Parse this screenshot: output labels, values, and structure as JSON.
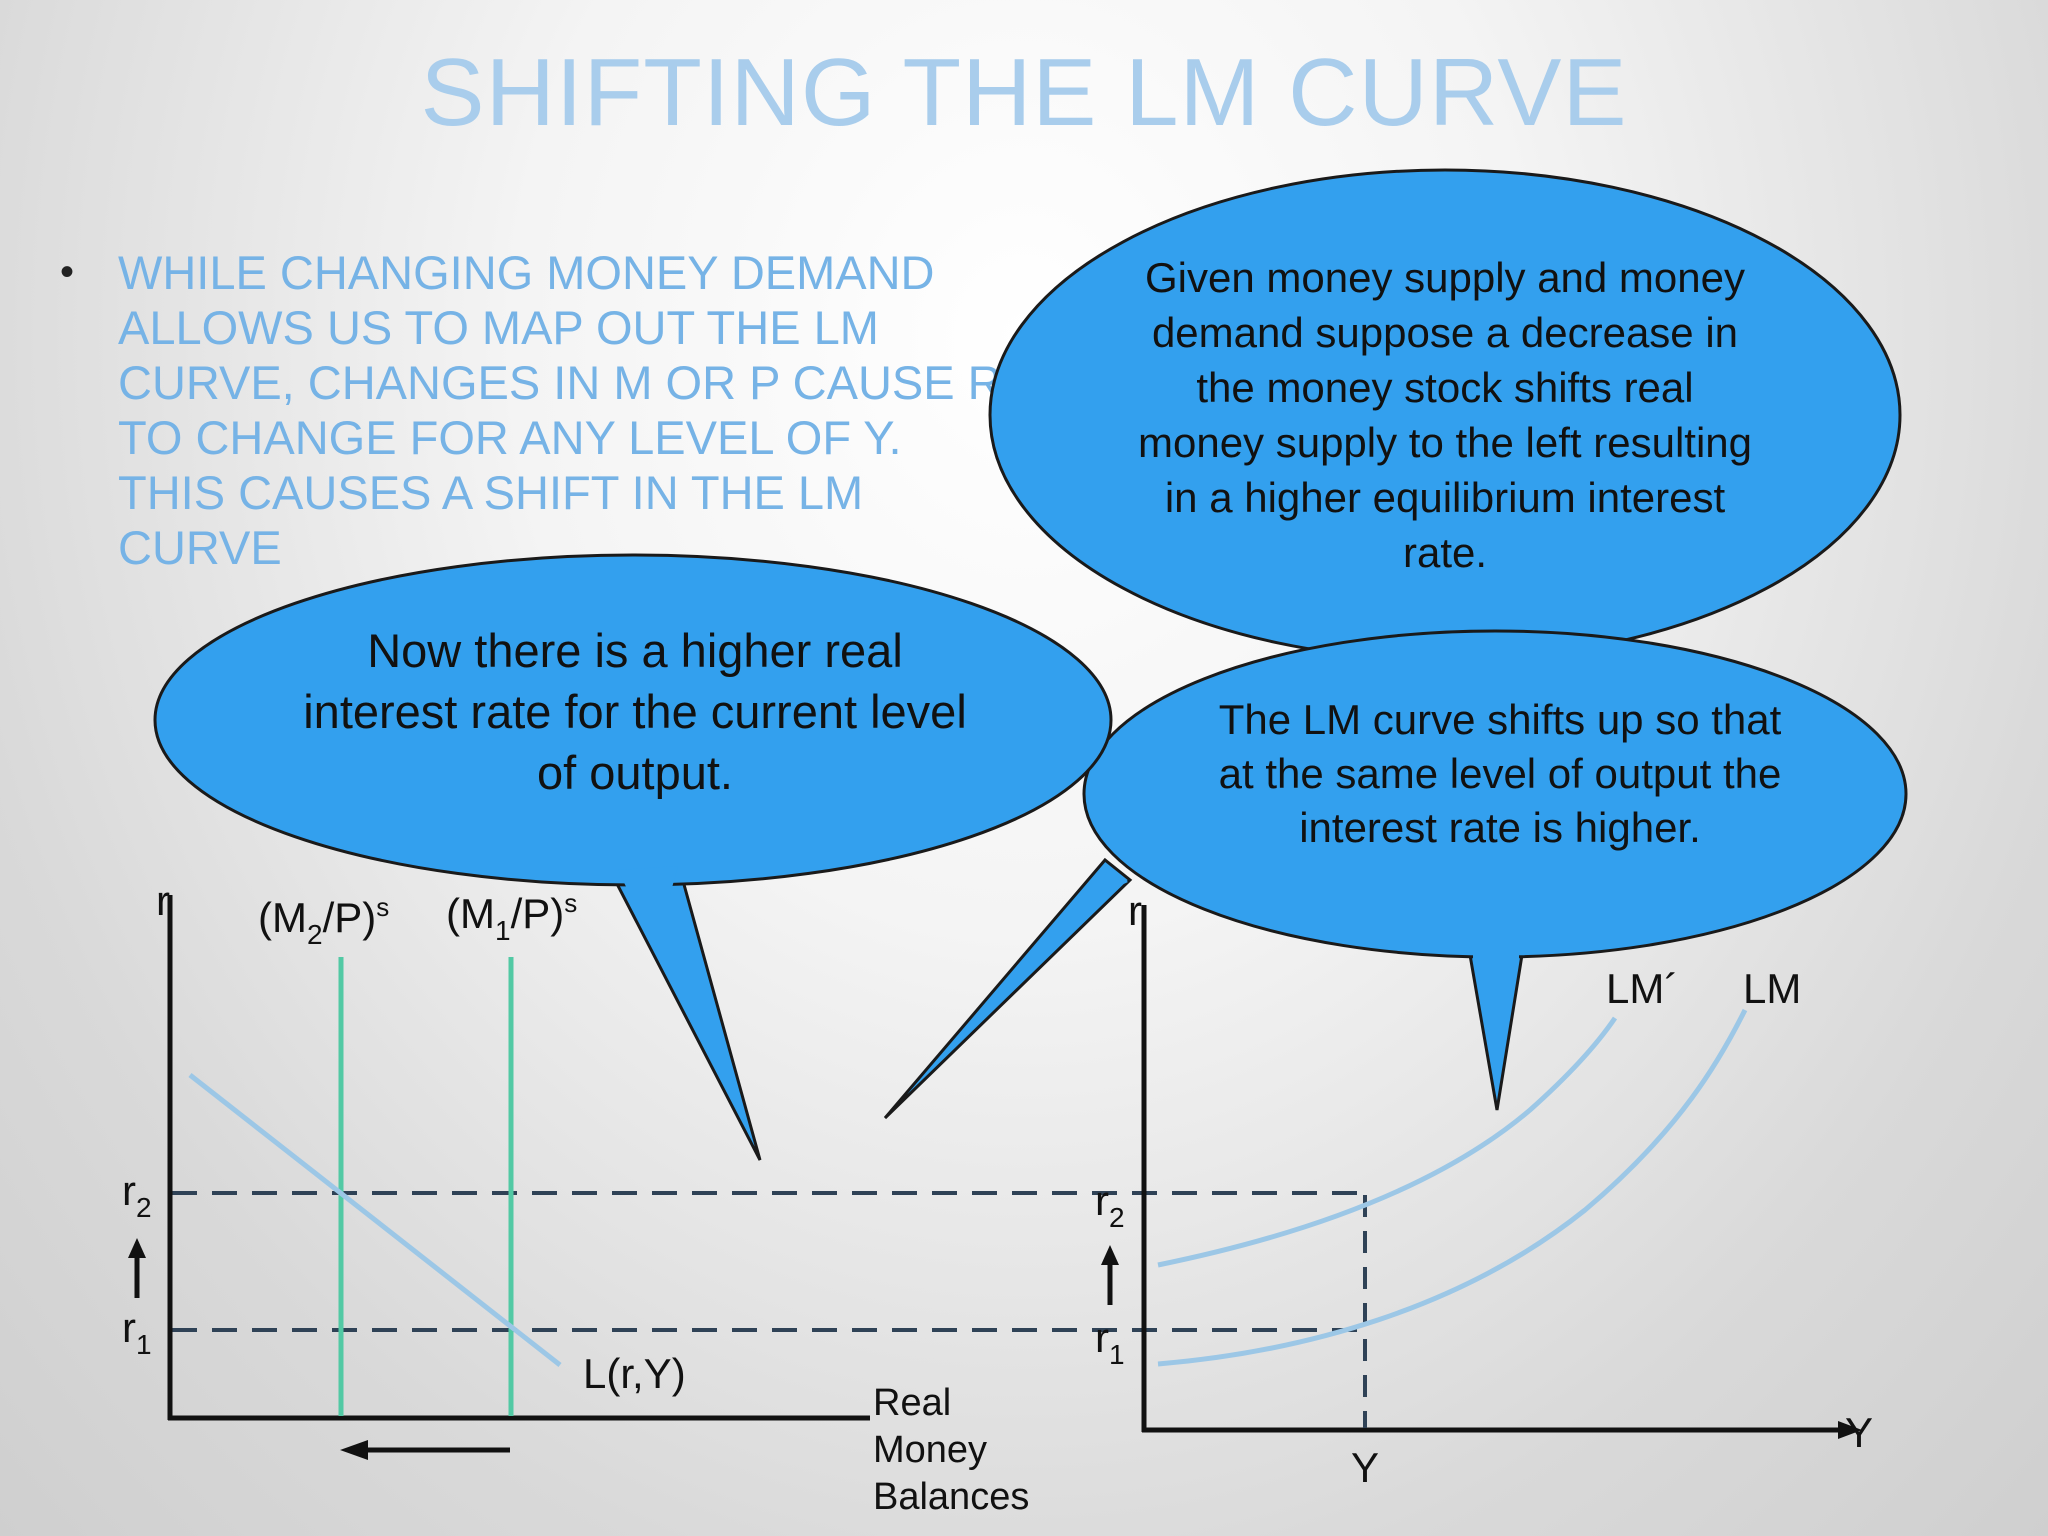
{
  "title": "SHIFTING THE LM CURVE",
  "bullet": "WHILE CHANGING MONEY DEMAND ALLOWS US TO MAP OUT THE LM CURVE, CHANGES IN M OR P CAUSE R TO CHANGE FOR ANY LEVEL OF Y.  THIS CAUSES A SHIFT IN THE LM CURVE",
  "callouts": {
    "top": "Given money supply and money demand suppose a decrease in the money stock shifts real money supply to the left resulting in a higher equilibrium interest rate.",
    "left": "Now there is a higher real interest rate for the current level of output.",
    "right": "The LM curve shifts up so that at the same level of output the interest rate is higher."
  },
  "left_graph": {
    "y_axis": "r",
    "x_axis": [
      "Real",
      "Money",
      "Balances"
    ],
    "supply_m2": {
      "base": "(M",
      "sub": "2",
      "mid": "/P)",
      "sup": "s"
    },
    "supply_m1": {
      "base": "(M",
      "sub": "1",
      "mid": "/P)",
      "sup": "s"
    },
    "demand": "L(r,Y)",
    "r2": {
      "base": "r",
      "sub": "2"
    },
    "r1": {
      "base": "r",
      "sub": "1"
    }
  },
  "right_graph": {
    "y_axis": "r",
    "x_axis": "Y",
    "x_tick": "Y",
    "lm_new": "LM´",
    "lm_old": "LM",
    "r2": {
      "base": "r",
      "sub": "2"
    },
    "r1": {
      "base": "r",
      "sub": "1"
    }
  },
  "colors": {
    "callout_fill": "#33a0ee",
    "supply_line": "#52c9a4",
    "curve": "#9cc7e6",
    "dashed": "#2f4256",
    "title": "#a9cdec",
    "bullet_text": "#76b3e6"
  }
}
